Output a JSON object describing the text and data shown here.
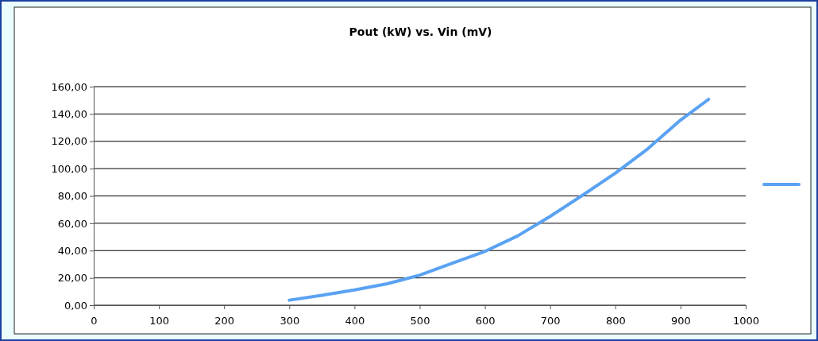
{
  "chart_data": {
    "type": "line",
    "title": "Pout (kW) vs. Vin (mV)",
    "x": [
      300,
      350,
      400,
      450,
      500,
      550,
      600,
      650,
      700,
      750,
      800,
      850,
      900,
      943
    ],
    "series": [
      {
        "color": "#5aa2f2",
        "values": [
          3.7,
          7.3,
          11.2,
          15.7,
          22,
          30.8,
          39.4,
          50.7,
          65,
          80.6,
          96.7,
          114.6,
          135.5,
          150.7
        ]
      }
    ],
    "xlim": [
      0,
      1000
    ],
    "xticks": [
      0,
      100,
      200,
      300,
      400,
      500,
      600,
      700,
      800,
      900,
      1000
    ],
    "ylim": [
      0,
      160
    ],
    "yticks": [
      {
        "value": 0,
        "label": "0,00"
      },
      {
        "value": 20,
        "label": "20,00"
      },
      {
        "value": 40,
        "label": "40,00"
      },
      {
        "value": 60,
        "label": "60,00"
      },
      {
        "value": 80,
        "label": "80,00"
      },
      {
        "value": 100,
        "label": "100,00"
      },
      {
        "value": 120,
        "label": "120,00"
      },
      {
        "value": 140,
        "label": "140,00"
      },
      {
        "value": 160,
        "label": "160,00"
      }
    ],
    "grid": "y",
    "marker": "none",
    "line_style": "solid"
  }
}
